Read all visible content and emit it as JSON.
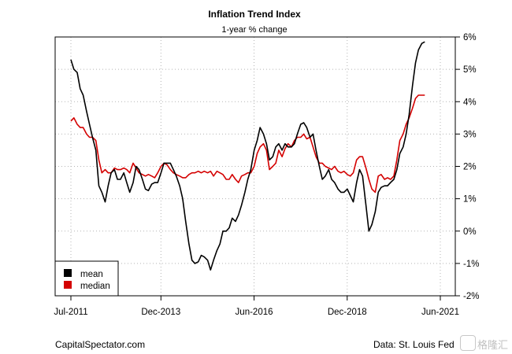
{
  "chart_data": {
    "type": "line",
    "title": "Inflation Trend Index",
    "subtitle": "1-year % change",
    "xlabel": "",
    "ylabel": "",
    "xlim": [
      2011.5,
      2021.5
    ],
    "ylim": [
      -2,
      6
    ],
    "grid": true,
    "legend_position": "bottom-left",
    "x_ticks": [
      {
        "value": 2011.5,
        "label": "Jul-2011"
      },
      {
        "value": 2013.917,
        "label": "Dec-2013"
      },
      {
        "value": 2016.417,
        "label": "Jun-2016"
      },
      {
        "value": 2018.917,
        "label": "Dec-2018"
      },
      {
        "value": 2021.417,
        "label": "Jun-2021"
      }
    ],
    "y_ticks": [
      {
        "value": 6,
        "label": "6%"
      },
      {
        "value": 5,
        "label": "5%"
      },
      {
        "value": 4,
        "label": "4%"
      },
      {
        "value": 3,
        "label": "3%"
      },
      {
        "value": 2,
        "label": "2%"
      },
      {
        "value": 1,
        "label": "1%"
      },
      {
        "value": 0,
        "label": "0%"
      },
      {
        "value": -1,
        "label": "-1%"
      },
      {
        "value": -2,
        "label": "-2%"
      }
    ],
    "series": [
      {
        "name": "mean",
        "color": "#000000",
        "points": [
          [
            2011.5,
            5.3
          ],
          [
            2011.58,
            5.0
          ],
          [
            2011.67,
            4.9
          ],
          [
            2011.75,
            4.4
          ],
          [
            2011.83,
            4.2
          ],
          [
            2011.92,
            3.7
          ],
          [
            2012.0,
            3.3
          ],
          [
            2012.08,
            2.9
          ],
          [
            2012.17,
            2.5
          ],
          [
            2012.25,
            1.4
          ],
          [
            2012.33,
            1.2
          ],
          [
            2012.42,
            0.9
          ],
          [
            2012.5,
            1.4
          ],
          [
            2012.58,
            1.8
          ],
          [
            2012.67,
            1.9
          ],
          [
            2012.75,
            1.6
          ],
          [
            2012.83,
            1.6
          ],
          [
            2012.92,
            1.8
          ],
          [
            2013.0,
            1.5
          ],
          [
            2013.08,
            1.2
          ],
          [
            2013.17,
            1.5
          ],
          [
            2013.25,
            2.0
          ],
          [
            2013.33,
            1.9
          ],
          [
            2013.42,
            1.6
          ],
          [
            2013.5,
            1.3
          ],
          [
            2013.58,
            1.25
          ],
          [
            2013.67,
            1.45
          ],
          [
            2013.75,
            1.5
          ],
          [
            2013.83,
            1.5
          ],
          [
            2013.92,
            1.8
          ],
          [
            2014.0,
            2.1
          ],
          [
            2014.08,
            2.1
          ],
          [
            2014.17,
            2.1
          ],
          [
            2014.25,
            1.9
          ],
          [
            2014.33,
            1.7
          ],
          [
            2014.42,
            1.4
          ],
          [
            2014.5,
            1.0
          ],
          [
            2014.58,
            0.3
          ],
          [
            2014.67,
            -0.4
          ],
          [
            2014.75,
            -0.9
          ],
          [
            2014.83,
            -1.0
          ],
          [
            2014.92,
            -0.95
          ],
          [
            2015.0,
            -0.75
          ],
          [
            2015.08,
            -0.8
          ],
          [
            2015.17,
            -0.9
          ],
          [
            2015.25,
            -1.2
          ],
          [
            2015.33,
            -0.9
          ],
          [
            2015.42,
            -0.6
          ],
          [
            2015.5,
            -0.4
          ],
          [
            2015.58,
            0.0
          ],
          [
            2015.67,
            0.0
          ],
          [
            2015.75,
            0.1
          ],
          [
            2015.83,
            0.4
          ],
          [
            2015.92,
            0.3
          ],
          [
            2016.0,
            0.5
          ],
          [
            2016.08,
            0.8
          ],
          [
            2016.17,
            1.2
          ],
          [
            2016.25,
            1.6
          ],
          [
            2016.33,
            1.9
          ],
          [
            2016.42,
            2.5
          ],
          [
            2016.5,
            2.8
          ],
          [
            2016.58,
            3.2
          ],
          [
            2016.67,
            3.0
          ],
          [
            2016.75,
            2.7
          ],
          [
            2016.83,
            2.2
          ],
          [
            2016.92,
            2.3
          ],
          [
            2017.0,
            2.6
          ],
          [
            2017.08,
            2.7
          ],
          [
            2017.17,
            2.5
          ],
          [
            2017.25,
            2.7
          ],
          [
            2017.33,
            2.6
          ],
          [
            2017.42,
            2.6
          ],
          [
            2017.5,
            2.7
          ],
          [
            2017.58,
            3.0
          ],
          [
            2017.67,
            3.3
          ],
          [
            2017.75,
            3.35
          ],
          [
            2017.83,
            3.2
          ],
          [
            2017.92,
            2.9
          ],
          [
            2018.0,
            3.0
          ],
          [
            2018.08,
            2.5
          ],
          [
            2018.17,
            2.0
          ],
          [
            2018.25,
            1.6
          ],
          [
            2018.33,
            1.7
          ],
          [
            2018.42,
            1.9
          ],
          [
            2018.5,
            1.6
          ],
          [
            2018.58,
            1.5
          ],
          [
            2018.67,
            1.3
          ],
          [
            2018.75,
            1.2
          ],
          [
            2018.83,
            1.2
          ],
          [
            2018.92,
            1.3
          ],
          [
            2019.0,
            1.1
          ],
          [
            2019.08,
            0.9
          ],
          [
            2019.17,
            1.5
          ],
          [
            2019.25,
            1.9
          ],
          [
            2019.33,
            1.7
          ],
          [
            2019.42,
            0.8
          ],
          [
            2019.5,
            0.0
          ],
          [
            2019.58,
            0.2
          ],
          [
            2019.67,
            0.6
          ],
          [
            2019.75,
            1.2
          ],
          [
            2019.83,
            1.35
          ],
          [
            2019.92,
            1.4
          ],
          [
            2020.0,
            1.4
          ],
          [
            2020.08,
            1.5
          ],
          [
            2020.17,
            1.6
          ],
          [
            2020.25,
            1.9
          ],
          [
            2020.33,
            2.4
          ],
          [
            2020.42,
            2.6
          ],
          [
            2020.5,
            3.0
          ],
          [
            2020.58,
            3.6
          ],
          [
            2020.67,
            4.5
          ],
          [
            2020.75,
            5.2
          ],
          [
            2020.83,
            5.6
          ],
          [
            2020.92,
            5.8
          ],
          [
            2021.0,
            5.85
          ]
        ]
      },
      {
        "name": "median",
        "color": "#d40000",
        "points": [
          [
            2011.5,
            3.4
          ],
          [
            2011.58,
            3.5
          ],
          [
            2011.67,
            3.3
          ],
          [
            2011.75,
            3.2
          ],
          [
            2011.83,
            3.2
          ],
          [
            2011.92,
            3.0
          ],
          [
            2012.0,
            2.9
          ],
          [
            2012.08,
            2.9
          ],
          [
            2012.17,
            2.8
          ],
          [
            2012.25,
            2.2
          ],
          [
            2012.33,
            1.8
          ],
          [
            2012.42,
            1.9
          ],
          [
            2012.5,
            1.8
          ],
          [
            2012.58,
            1.8
          ],
          [
            2012.67,
            1.95
          ],
          [
            2012.75,
            1.9
          ],
          [
            2012.83,
            1.9
          ],
          [
            2012.92,
            1.95
          ],
          [
            2013.0,
            1.9
          ],
          [
            2013.08,
            1.8
          ],
          [
            2013.17,
            2.1
          ],
          [
            2013.25,
            1.95
          ],
          [
            2013.33,
            1.8
          ],
          [
            2013.42,
            1.75
          ],
          [
            2013.5,
            1.7
          ],
          [
            2013.58,
            1.75
          ],
          [
            2013.67,
            1.7
          ],
          [
            2013.75,
            1.65
          ],
          [
            2013.83,
            1.8
          ],
          [
            2013.92,
            2.0
          ],
          [
            2014.0,
            2.1
          ],
          [
            2014.08,
            2.05
          ],
          [
            2014.17,
            1.9
          ],
          [
            2014.25,
            1.8
          ],
          [
            2014.33,
            1.75
          ],
          [
            2014.42,
            1.7
          ],
          [
            2014.5,
            1.65
          ],
          [
            2014.58,
            1.65
          ],
          [
            2014.67,
            1.75
          ],
          [
            2014.75,
            1.8
          ],
          [
            2014.83,
            1.8
          ],
          [
            2014.92,
            1.85
          ],
          [
            2015.0,
            1.8
          ],
          [
            2015.08,
            1.85
          ],
          [
            2015.17,
            1.8
          ],
          [
            2015.25,
            1.85
          ],
          [
            2015.33,
            1.7
          ],
          [
            2015.42,
            1.85
          ],
          [
            2015.5,
            1.8
          ],
          [
            2015.58,
            1.75
          ],
          [
            2015.67,
            1.6
          ],
          [
            2015.75,
            1.6
          ],
          [
            2015.83,
            1.75
          ],
          [
            2015.92,
            1.6
          ],
          [
            2016.0,
            1.5
          ],
          [
            2016.08,
            1.7
          ],
          [
            2016.17,
            1.75
          ],
          [
            2016.25,
            1.8
          ],
          [
            2016.33,
            1.8
          ],
          [
            2016.42,
            2.0
          ],
          [
            2016.5,
            2.4
          ],
          [
            2016.58,
            2.6
          ],
          [
            2016.67,
            2.7
          ],
          [
            2016.75,
            2.5
          ],
          [
            2016.83,
            1.9
          ],
          [
            2016.92,
            2.0
          ],
          [
            2017.0,
            2.1
          ],
          [
            2017.08,
            2.5
          ],
          [
            2017.17,
            2.3
          ],
          [
            2017.25,
            2.55
          ],
          [
            2017.33,
            2.7
          ],
          [
            2017.42,
            2.6
          ],
          [
            2017.5,
            2.8
          ],
          [
            2017.58,
            2.9
          ],
          [
            2017.67,
            2.9
          ],
          [
            2017.75,
            3.0
          ],
          [
            2017.83,
            2.85
          ],
          [
            2017.92,
            2.9
          ],
          [
            2018.0,
            2.6
          ],
          [
            2018.08,
            2.3
          ],
          [
            2018.17,
            2.1
          ],
          [
            2018.25,
            2.1
          ],
          [
            2018.33,
            2.0
          ],
          [
            2018.42,
            1.95
          ],
          [
            2018.5,
            1.9
          ],
          [
            2018.58,
            2.0
          ],
          [
            2018.67,
            1.85
          ],
          [
            2018.75,
            1.8
          ],
          [
            2018.83,
            1.85
          ],
          [
            2018.92,
            1.75
          ],
          [
            2019.0,
            1.7
          ],
          [
            2019.08,
            1.8
          ],
          [
            2019.17,
            2.2
          ],
          [
            2019.25,
            2.3
          ],
          [
            2019.33,
            2.3
          ],
          [
            2019.42,
            1.95
          ],
          [
            2019.5,
            1.6
          ],
          [
            2019.58,
            1.3
          ],
          [
            2019.67,
            1.2
          ],
          [
            2019.75,
            1.7
          ],
          [
            2019.83,
            1.75
          ],
          [
            2019.92,
            1.6
          ],
          [
            2020.0,
            1.65
          ],
          [
            2020.08,
            1.6
          ],
          [
            2020.17,
            1.7
          ],
          [
            2020.25,
            2.2
          ],
          [
            2020.33,
            2.8
          ],
          [
            2020.42,
            3.0
          ],
          [
            2020.5,
            3.3
          ],
          [
            2020.58,
            3.5
          ],
          [
            2020.67,
            3.8
          ],
          [
            2020.75,
            4.1
          ],
          [
            2020.83,
            4.2
          ],
          [
            2020.92,
            4.2
          ],
          [
            2021.0,
            4.2
          ]
        ]
      }
    ]
  },
  "footer": {
    "left": "CapitalSpectator.com",
    "right": "Data: St. Louis Fed",
    "watermark": "格隆汇"
  }
}
